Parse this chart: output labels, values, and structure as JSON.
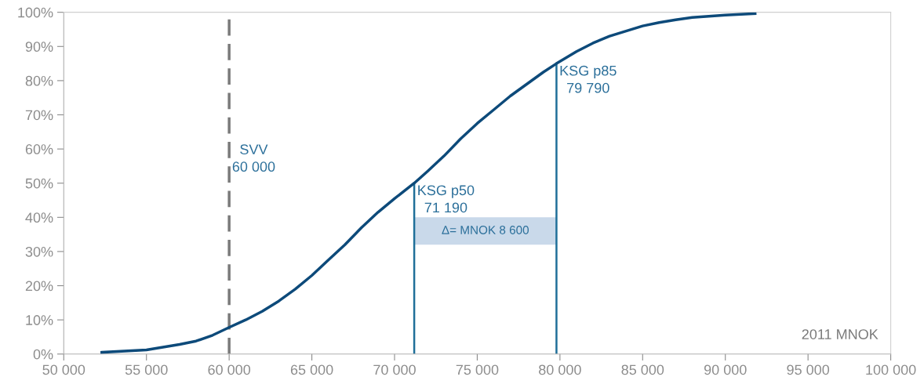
{
  "chart_data": {
    "type": "line",
    "x": [
      52300,
      55000,
      57000,
      58000,
      59000,
      60000,
      61000,
      62000,
      63000,
      64000,
      65000,
      66000,
      67000,
      68000,
      69000,
      70000,
      71190,
      72000,
      73000,
      74000,
      75000,
      76000,
      77000,
      78000,
      79000,
      79790,
      81000,
      82000,
      83000,
      84000,
      85000,
      86000,
      87000,
      88000,
      90000,
      91800
    ],
    "series": [
      {
        "color": "#0d4a7a",
        "values": [
          0.5,
          1.2,
          2.8,
          3.8,
          5.5,
          7.8,
          10,
          12.5,
          15.5,
          19,
          23,
          27.5,
          32,
          37,
          41.5,
          45.5,
          50,
          53.5,
          58,
          63,
          67.5,
          71.5,
          75.5,
          79,
          82.5,
          85,
          88.5,
          91,
          93,
          94.5,
          96,
          97,
          97.8,
          98.5,
          99.2,
          99.6
        ]
      }
    ],
    "xlim": [
      50000,
      100000
    ],
    "xticks": [
      {
        "value": 50000,
        "label": "50 000"
      },
      {
        "value": 55000,
        "label": "55 000"
      },
      {
        "value": 60000,
        "label": "60 000"
      },
      {
        "value": 65000,
        "label": "65 000"
      },
      {
        "value": 70000,
        "label": "70 000"
      },
      {
        "value": 75000,
        "label": "75 000"
      },
      {
        "value": 80000,
        "label": "80 000"
      },
      {
        "value": 85000,
        "label": "85 000"
      },
      {
        "value": 90000,
        "label": "90 000"
      },
      {
        "value": 95000,
        "label": "95 000"
      },
      {
        "value": 100000,
        "label": "100 000"
      }
    ],
    "ylim": [
      0,
      100
    ],
    "yticks": [
      {
        "value": 0,
        "label": "0%"
      },
      {
        "value": 10,
        "label": "10%"
      },
      {
        "value": 20,
        "label": "20%"
      },
      {
        "value": 30,
        "label": "30%"
      },
      {
        "value": 40,
        "label": "40%"
      },
      {
        "value": 50,
        "label": "50%"
      },
      {
        "value": 60,
        "label": "60%"
      },
      {
        "value": 70,
        "label": "70%"
      },
      {
        "value": 80,
        "label": "80%"
      },
      {
        "value": 90,
        "label": "90%"
      },
      {
        "value": 100,
        "label": "100%"
      }
    ],
    "ref_lines": [
      {
        "axis": "x",
        "value": 60000,
        "label": "SVV\n60 000",
        "color": "#7a7a7a",
        "line_style": "dashed"
      },
      {
        "axis": "x",
        "value": 71190,
        "label": "KSG p50\n71 190",
        "color": "#1f6f99",
        "line_style": "solid"
      },
      {
        "axis": "x",
        "value": 79790,
        "label": "KSG p85\n79 790",
        "color": "#1f6f99",
        "line_style": "solid"
      }
    ],
    "bands": [
      {
        "axis": "x",
        "from": 71190,
        "to": 79790,
        "label": "Δ= MNOK 8 600",
        "color": "#c9d9ea"
      }
    ],
    "annotations": [
      "2011 MNOK"
    ],
    "grid": false,
    "legend": false,
    "marker": "none",
    "line_style": "solid"
  }
}
